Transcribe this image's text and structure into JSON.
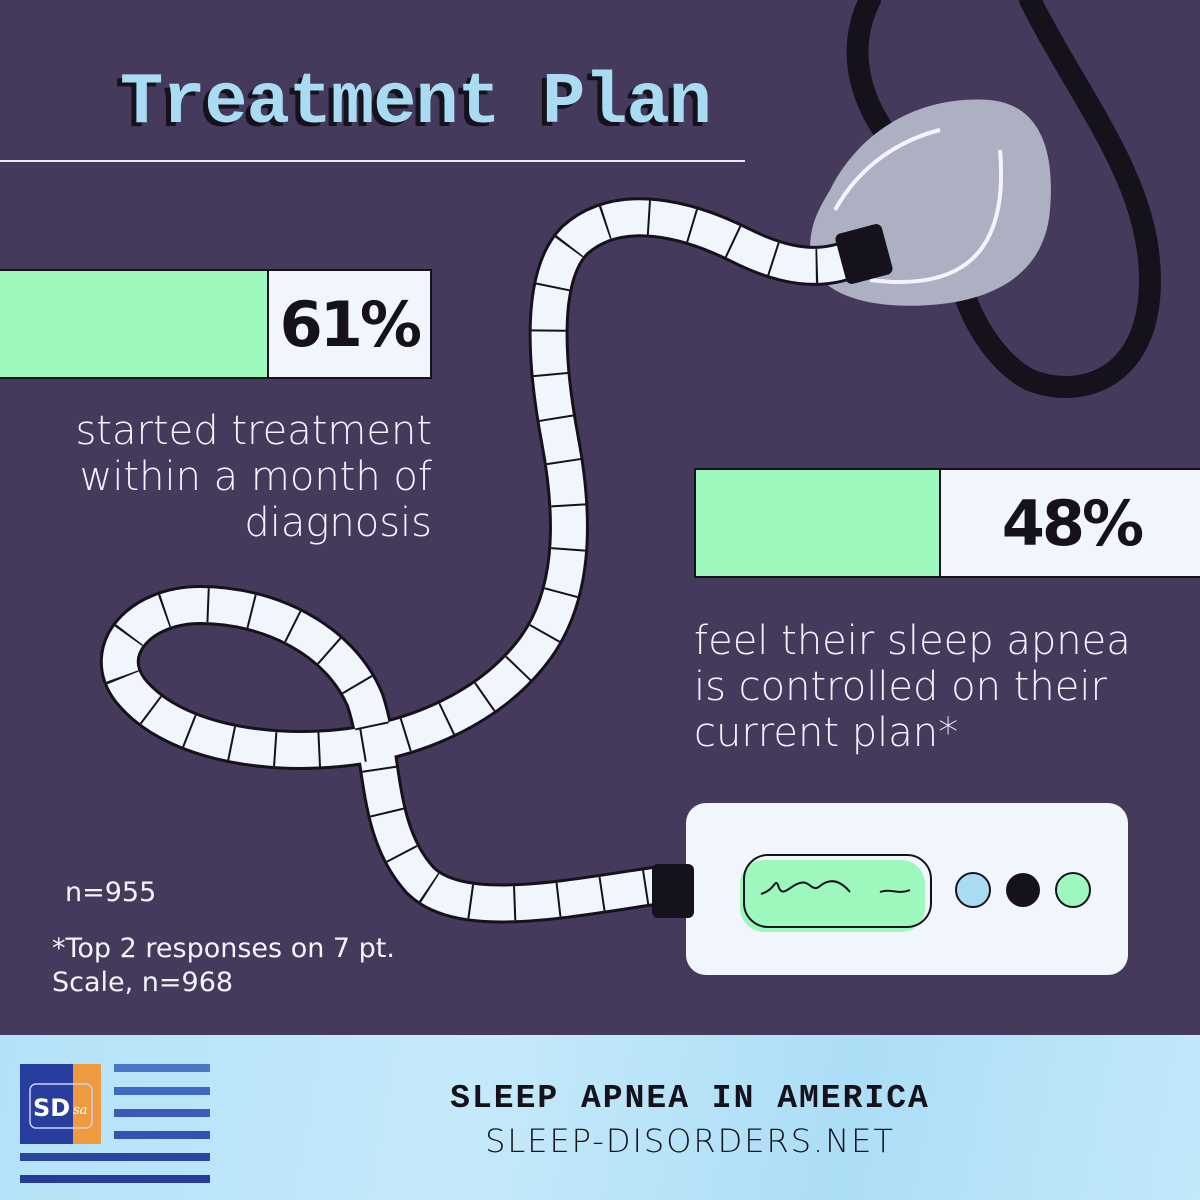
{
  "title": "Treatment Plan",
  "stats": [
    {
      "value": "61%",
      "fill_percent": 61,
      "description": "started treatment within a month of diagnosis"
    },
    {
      "value": "48%",
      "fill_percent": 48,
      "description": "feel their sleep apnea is controlled on their current plan*"
    }
  ],
  "notes": {
    "sample": "n=955",
    "footnote": "*Top 2 responses on 7 pt. Scale, n=968"
  },
  "footer": {
    "title": "SLEEP APNEA IN AMERICA",
    "site": "SLEEP-DISORDERS.NET",
    "logo_text": "SDsa"
  },
  "colors": {
    "background": "#463a5c",
    "accent_green": "#9df8bd",
    "accent_blue": "#a9dcf3",
    "dark": "#15121c"
  }
}
